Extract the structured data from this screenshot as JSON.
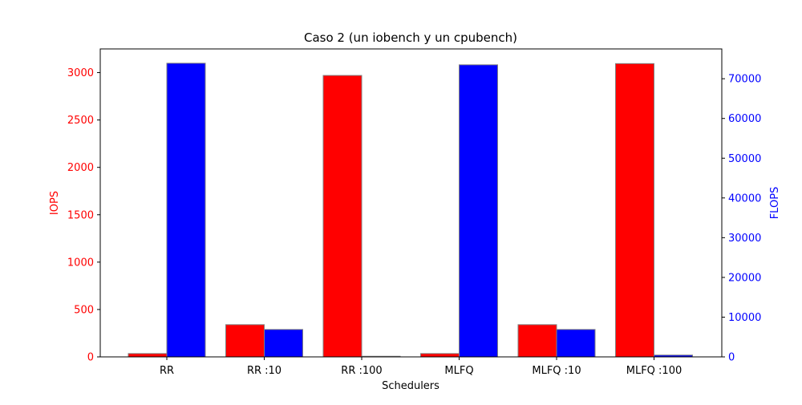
{
  "chart_data": {
    "type": "bar",
    "title": "Caso 2 (un iobench y un cpubench)",
    "xlabel": "Schedulers",
    "ylabel_left": "IOPS",
    "ylabel_right": "FLOPS",
    "categories": [
      "RR",
      "RR :10",
      "RR :100",
      "MLFQ",
      "MLFQ :10",
      "MLFQ :100"
    ],
    "series": [
      {
        "name": "IOPS",
        "axis": "left",
        "color": "#ff0000",
        "values": [
          35,
          340,
          2970,
          35,
          340,
          3095
        ]
      },
      {
        "name": "FLOPS",
        "axis": "right",
        "color": "#0000ff",
        "values": [
          73900,
          6900,
          150,
          73500,
          6900,
          450
        ]
      }
    ],
    "ylim_left": [
      0,
      3250
    ],
    "ylim_right": [
      0,
      77500
    ],
    "yticks_left": [
      0,
      500,
      1000,
      1500,
      2000,
      2500,
      3000
    ],
    "yticks_right": [
      0,
      10000,
      20000,
      30000,
      40000,
      50000,
      60000,
      70000
    ],
    "left_axis_color": "#ff0000",
    "right_axis_color": "#0000ff",
    "bar_edge_color": "#808080",
    "grid": false,
    "legend": "none"
  }
}
